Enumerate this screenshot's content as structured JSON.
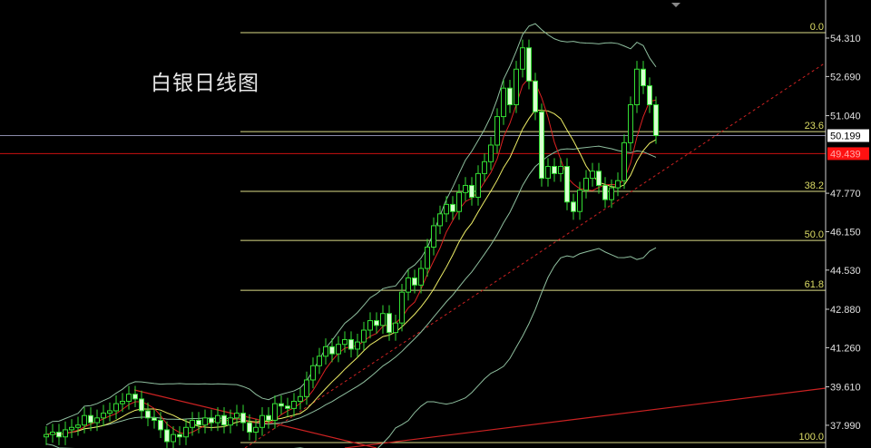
{
  "chart_data": {
    "type": "candlestick",
    "title": "白银日线图",
    "y_ticks": [
      "54.310",
      "52.690",
      "51.040",
      "49.439",
      "47.770",
      "46.150",
      "44.530",
      "42.880",
      "41.260",
      "39.610",
      "37.990"
    ],
    "y_tick_values": [
      54.31,
      52.69,
      51.04,
      47.77,
      46.15,
      44.53,
      42.88,
      41.26,
      39.61,
      37.99
    ],
    "ylim": [
      37.1,
      55.9
    ],
    "current_price": {
      "label": "50.199",
      "value": 50.199,
      "color": "#ffffff"
    },
    "reference_price": {
      "label": "49.439",
      "value": 49.439,
      "color": "#ff0000"
    },
    "fibonacci": [
      {
        "label": "0.0",
        "value": 54.54
      },
      {
        "label": "23.6",
        "value": 50.37
      },
      {
        "label": "38.2",
        "value": 47.85
      },
      {
        "label": "50.0",
        "value": 45.78
      },
      {
        "label": "61.8",
        "value": 43.68
      },
      {
        "label": "100.0",
        "value": 37.26
      }
    ],
    "closes": [
      37.6,
      37.7,
      37.5,
      37.8,
      37.9,
      38.0,
      38.4,
      38.1,
      38.3,
      38.5,
      38.6,
      38.9,
      39.0,
      39.3,
      39.1,
      38.6,
      38.3,
      38.2,
      37.8,
      37.3,
      37.6,
      37.5,
      37.9,
      38.2,
      38.0,
      38.3,
      38.1,
      38.4,
      38.0,
      38.3,
      38.5,
      38.1,
      37.7,
      37.9,
      38.4,
      38.2,
      38.9,
      38.8,
      38.7,
      39.0,
      39.2,
      39.9,
      40.5,
      40.9,
      41.3,
      41.0,
      41.4,
      41.6,
      41.2,
      41.5,
      42.0,
      42.4,
      42.2,
      42.7,
      41.9,
      42.3,
      43.6,
      44.2,
      43.9,
      44.6,
      45.5,
      46.4,
      46.9,
      47.3,
      47.0,
      47.8,
      48.1,
      47.6,
      48.6,
      49.1,
      49.8,
      51.0,
      52.2,
      51.5,
      53.0,
      53.9,
      52.5,
      51.2,
      48.4,
      48.9,
      48.6,
      48.9,
      47.4,
      47.0,
      47.9,
      48.4,
      48.7,
      48.1,
      47.5,
      48.0,
      48.3,
      49.9,
      51.5,
      53.0,
      52.3,
      51.5,
      50.2
    ],
    "indicators": [
      "MA5",
      "MA10",
      "Bollinger(20)"
    ],
    "colors": {
      "candle": "#33dd33",
      "bear_fill": "#d8ffd0",
      "ma_fast": "#dd2222",
      "ma_slow": "#eeee66",
      "bollinger": "#8fbf9f",
      "fib": "#dddd88",
      "fib_label": "#dddd66",
      "trendline": "#cc2222",
      "axis": "#d0d0d0"
    }
  }
}
